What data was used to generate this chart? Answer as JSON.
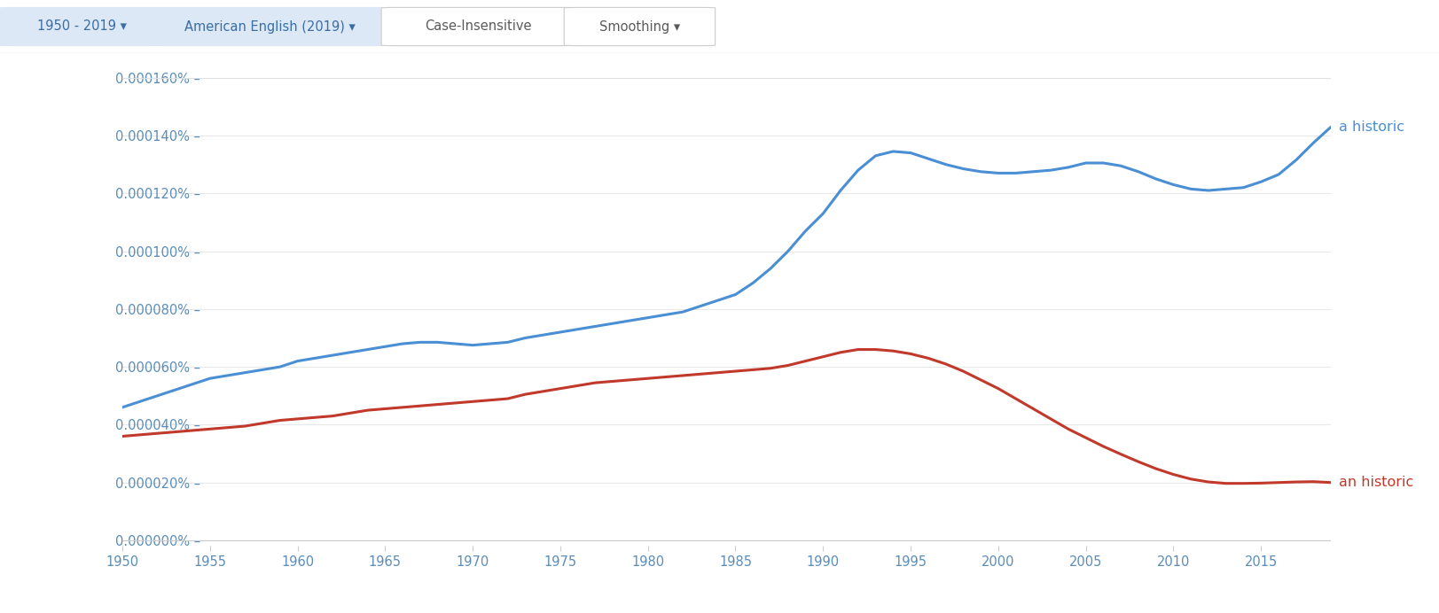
{
  "background_color": "#ffffff",
  "toolbar_bg": "#f8f9fa",
  "grid_color": "#e8e8e8",
  "tick_color": "#5b8db8",
  "blue_color": "#4a8fd4",
  "red_color": "#c0392b",
  "label_blue": "a historic",
  "label_red": "an historic",
  "btn1_text": "1950 - 2019 ▾",
  "btn2_text": "American English (2019) ▾",
  "btn3_text": "Case-Insensitive",
  "btn4_text": "Smoothing ▾",
  "btn_bg_blue": "#dce8f5",
  "btn_text_blue": "#3a6ea5",
  "btn_bg_white": "#ffffff",
  "btn_text_dark": "#5a5a5a",
  "x_ticks": [
    1950,
    1955,
    1960,
    1965,
    1970,
    1975,
    1980,
    1985,
    1990,
    1995,
    2000,
    2005,
    2010,
    2015
  ],
  "y_ticks": [
    0.0,
    2e-07,
    4e-07,
    6e-07,
    8e-07,
    1e-06,
    1.2e-06,
    1.4e-06,
    1.6e-06
  ],
  "y_tick_labels": [
    "0.000000% –",
    "0.000020% –",
    "0.000040% –",
    "0.000060% –",
    "0.000080% –",
    "0.000100% –",
    "0.000120% –",
    "0.000140% –",
    "0.000160% –"
  ],
  "a_historic_x": [
    1950,
    1951,
    1952,
    1953,
    1954,
    1955,
    1956,
    1957,
    1958,
    1959,
    1960,
    1961,
    1962,
    1963,
    1964,
    1965,
    1966,
    1967,
    1968,
    1969,
    1970,
    1971,
    1972,
    1973,
    1974,
    1975,
    1976,
    1977,
    1978,
    1979,
    1980,
    1981,
    1982,
    1983,
    1984,
    1985,
    1986,
    1987,
    1988,
    1989,
    1990,
    1991,
    1992,
    1993,
    1994,
    1995,
    1996,
    1997,
    1998,
    1999,
    2000,
    2001,
    2002,
    2003,
    2004,
    2005,
    2006,
    2007,
    2008,
    2009,
    2010,
    2011,
    2012,
    2013,
    2014,
    2015,
    2016,
    2017,
    2018,
    2019
  ],
  "a_historic_y": [
    4.6e-07,
    4.8e-07,
    5e-07,
    5.2e-07,
    5.4e-07,
    5.6e-07,
    5.7e-07,
    5.8e-07,
    5.9e-07,
    6e-07,
    6.2e-07,
    6.3e-07,
    6.4e-07,
    6.5e-07,
    6.6e-07,
    6.7e-07,
    6.8e-07,
    6.85e-07,
    6.85e-07,
    6.8e-07,
    6.75e-07,
    6.8e-07,
    6.85e-07,
    7e-07,
    7.1e-07,
    7.2e-07,
    7.3e-07,
    7.4e-07,
    7.5e-07,
    7.6e-07,
    7.7e-07,
    7.8e-07,
    7.9e-07,
    8.1e-07,
    8.3e-07,
    8.5e-07,
    8.9e-07,
    9.4e-07,
    1e-06,
    1.07e-06,
    1.13e-06,
    1.21e-06,
    1.28e-06,
    1.33e-06,
    1.345e-06,
    1.34e-06,
    1.32e-06,
    1.3e-06,
    1.285e-06,
    1.275e-06,
    1.27e-06,
    1.27e-06,
    1.275e-06,
    1.28e-06,
    1.29e-06,
    1.305e-06,
    1.305e-06,
    1.295e-06,
    1.275e-06,
    1.25e-06,
    1.23e-06,
    1.215e-06,
    1.21e-06,
    1.215e-06,
    1.22e-06,
    1.24e-06,
    1.265e-06,
    1.315e-06,
    1.375e-06,
    1.43e-06
  ],
  "an_historic_x": [
    1950,
    1951,
    1952,
    1953,
    1954,
    1955,
    1956,
    1957,
    1958,
    1959,
    1960,
    1961,
    1962,
    1963,
    1964,
    1965,
    1966,
    1967,
    1968,
    1969,
    1970,
    1971,
    1972,
    1973,
    1974,
    1975,
    1976,
    1977,
    1978,
    1979,
    1980,
    1981,
    1982,
    1983,
    1984,
    1985,
    1986,
    1987,
    1988,
    1989,
    1990,
    1991,
    1992,
    1993,
    1994,
    1995,
    1996,
    1997,
    1998,
    1999,
    2000,
    2001,
    2002,
    2003,
    2004,
    2005,
    2006,
    2007,
    2008,
    2009,
    2010,
    2011,
    2012,
    2013,
    2014,
    2015,
    2016,
    2017,
    2018,
    2019
  ],
  "an_historic_y": [
    3.6e-07,
    3.65e-07,
    3.7e-07,
    3.75e-07,
    3.8e-07,
    3.85e-07,
    3.9e-07,
    3.95e-07,
    4.05e-07,
    4.15e-07,
    4.2e-07,
    4.25e-07,
    4.3e-07,
    4.4e-07,
    4.5e-07,
    4.55e-07,
    4.6e-07,
    4.65e-07,
    4.7e-07,
    4.75e-07,
    4.8e-07,
    4.85e-07,
    4.9e-07,
    5.05e-07,
    5.15e-07,
    5.25e-07,
    5.35e-07,
    5.45e-07,
    5.5e-07,
    5.55e-07,
    5.6e-07,
    5.65e-07,
    5.7e-07,
    5.75e-07,
    5.8e-07,
    5.85e-07,
    5.9e-07,
    5.95e-07,
    6.05e-07,
    6.2e-07,
    6.35e-07,
    6.5e-07,
    6.6e-07,
    6.6e-07,
    6.55e-07,
    6.45e-07,
    6.3e-07,
    6.1e-07,
    5.85e-07,
    5.55e-07,
    5.25e-07,
    4.9e-07,
    4.55e-07,
    4.2e-07,
    3.85e-07,
    3.55e-07,
    3.25e-07,
    2.98e-07,
    2.72e-07,
    2.48e-07,
    2.28e-07,
    2.12e-07,
    2.02e-07,
    1.97e-07,
    1.97e-07,
    1.98e-07,
    2e-07,
    2.02e-07,
    2.03e-07,
    2e-07
  ]
}
